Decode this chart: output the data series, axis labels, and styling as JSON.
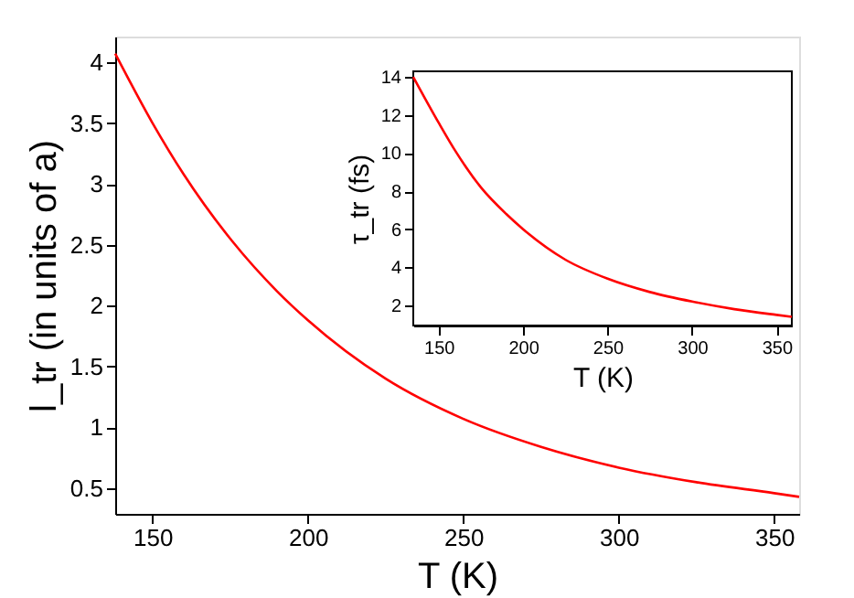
{
  "chart_data": [
    {
      "type": "line",
      "xlabel": "T (K)",
      "ylabel": "l_tr (in units of a)",
      "x": [
        138,
        150,
        160,
        175,
        190,
        200,
        225,
        250,
        275,
        300,
        325,
        350,
        358
      ],
      "series": [
        {
          "color": "#ff0000",
          "values": [
            4.07,
            3.5,
            3.08,
            2.55,
            2.12,
            1.88,
            1.4,
            1.07,
            0.84,
            0.67,
            0.55,
            0.46,
            0.43
          ]
        }
      ],
      "xlim": [
        138,
        358
      ],
      "ylim": [
        0.29,
        4.21
      ],
      "xticks": [
        150,
        200,
        250,
        300,
        350
      ],
      "yticks": [
        0.5,
        1,
        1.5,
        2,
        2.5,
        3,
        3.5,
        4
      ],
      "grid": false,
      "legend": false
    },
    {
      "type": "line",
      "xlabel": "T (K)",
      "ylabel": "τ_tr (fs)",
      "x": [
        135,
        150,
        160,
        175,
        190,
        200,
        225,
        250,
        275,
        300,
        325,
        350,
        359
      ],
      "series": [
        {
          "color": "#ff0000",
          "values": [
            14.0,
            11.6,
            10.1,
            8.2,
            6.8,
            6.0,
            4.4,
            3.4,
            2.7,
            2.2,
            1.8,
            1.5,
            1.4
          ]
        }
      ],
      "xlim": [
        135,
        359
      ],
      "ylim": [
        0.94,
        14.3
      ],
      "xticks": [
        150,
        200,
        250,
        300,
        350
      ],
      "yticks": [
        2,
        4,
        6,
        8,
        10,
        12,
        14
      ],
      "grid": false,
      "legend": false
    }
  ]
}
